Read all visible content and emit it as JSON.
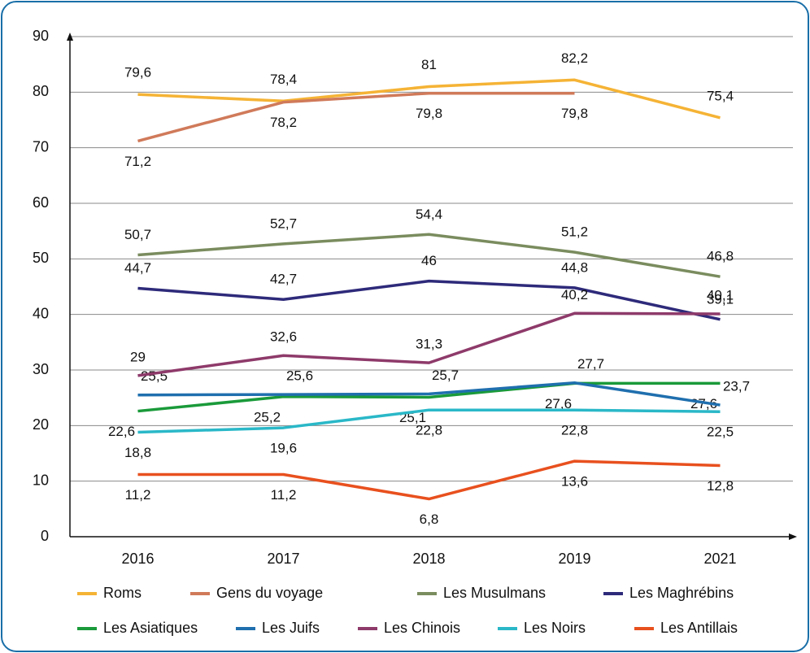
{
  "chart_data": {
    "type": "line",
    "categories": [
      "2016",
      "2017",
      "2018",
      "2019",
      "2021"
    ],
    "ylim": [
      0,
      90
    ],
    "yticks": [
      0,
      10,
      20,
      30,
      40,
      50,
      60,
      70,
      80,
      90
    ],
    "grid": true,
    "legend": "bottom",
    "series": [
      {
        "name": "Roms",
        "color": "#f5b335",
        "values": [
          79.6,
          78.4,
          81,
          82.2,
          75.4
        ],
        "value_labels": [
          "79,6",
          "78,4",
          "81",
          "82,2",
          "75,4"
        ]
      },
      {
        "name": "Gens du voyage",
        "color": "#d07a5a",
        "values": [
          71.2,
          78.2,
          79.8,
          79.8,
          null
        ],
        "value_labels": [
          "71,2",
          "78,2",
          "79,8",
          "79,8",
          null
        ]
      },
      {
        "name": "Les Musulmans",
        "color": "#7a8c5e",
        "values": [
          50.7,
          52.7,
          54.4,
          51.2,
          46.8
        ],
        "value_labels": [
          "50,7",
          "52,7",
          "54,4",
          "51,2",
          "46,8"
        ]
      },
      {
        "name": "Les Maghrébins",
        "color": "#2e2a7a",
        "values": [
          44.7,
          42.7,
          46,
          44.8,
          39.1
        ],
        "value_labels": [
          "44,7",
          "42,7",
          "46",
          "44,8",
          "39,1"
        ]
      },
      {
        "name": "Les Asiatiques",
        "color": "#1a9a3a",
        "values": [
          22.6,
          25.2,
          25.1,
          27.6,
          27.6
        ],
        "value_labels": [
          "22,6",
          "25,2",
          "25,1",
          "27,6",
          "27,6"
        ]
      },
      {
        "name": "Les Juifs",
        "color": "#1f6fae",
        "values": [
          25.5,
          25.6,
          25.7,
          27.7,
          23.7
        ],
        "value_labels": [
          "25,5",
          "25,6",
          "25,7",
          "27,7",
          "23,7"
        ]
      },
      {
        "name": "Les Chinois",
        "color": "#8e3a6a",
        "values": [
          29,
          32.6,
          31.3,
          40.2,
          40.1
        ],
        "value_labels": [
          "29",
          "32,6",
          "31,3",
          "40,2",
          "40,1"
        ]
      },
      {
        "name": "Les Noirs",
        "color": "#2ab8c8",
        "values": [
          18.8,
          19.6,
          22.8,
          22.8,
          22.5
        ],
        "value_labels": [
          "18,8",
          "19,6",
          "22,8",
          "22,8",
          "22,5"
        ]
      },
      {
        "name": "Les Antillais",
        "color": "#e8501e",
        "values": [
          11.2,
          11.2,
          6.8,
          13.6,
          12.8
        ],
        "value_labels": [
          "11,2",
          "11,2",
          "6,8",
          "13,6",
          "12,8"
        ]
      }
    ]
  }
}
